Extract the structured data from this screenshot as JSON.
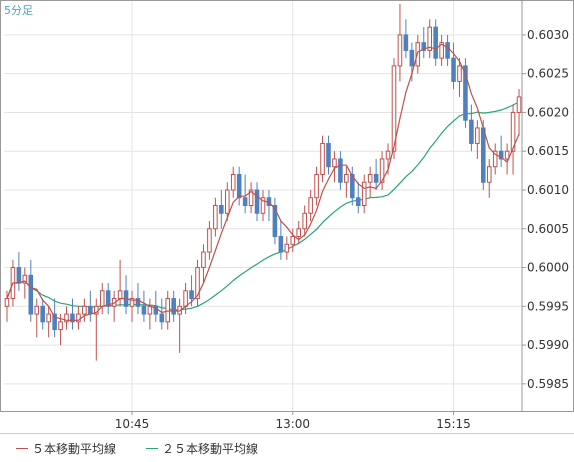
{
  "timeframe_label": "5分足",
  "colors": {
    "up": "#c0504d",
    "down": "#4f81bd",
    "ma5": "#c0504d",
    "ma25": "#2aa57a",
    "grid": "#e3e3e3",
    "axis": "#999999"
  },
  "legend": [
    {
      "label": "５本移動平均線",
      "color": "#c0504d"
    },
    {
      "label": "２５本移動平均線",
      "color": "#2aa57a"
    }
  ],
  "chart_data": {
    "type": "candlestick",
    "x_ticks": [
      "10:45",
      "13:00",
      "15:15"
    ],
    "x_tick_index": [
      21,
      48,
      75
    ],
    "y_ticks": [
      "0.6030",
      "0.6025",
      "0.6020",
      "0.6015",
      "0.6010",
      "0.6005",
      "0.6000",
      "0.5995",
      "0.5990",
      "0.5985"
    ],
    "ylim": [
      0.59815,
      0.60345
    ],
    "grid": true,
    "series": [
      {
        "name": "５本移動平均線"
      },
      {
        "name": "２５本移動平均線"
      }
    ],
    "candles": [
      [
        0.5995,
        0.5997,
        0.5993,
        0.5996
      ],
      [
        0.5996,
        0.6001,
        0.5995,
        0.6
      ],
      [
        0.6,
        0.6002,
        0.5997,
        0.5998
      ],
      [
        0.5998,
        0.6,
        0.5996,
        0.5999
      ],
      [
        0.5999,
        0.6001,
        0.5993,
        0.5994
      ],
      [
        0.5994,
        0.5996,
        0.5991,
        0.5995
      ],
      [
        0.5995,
        0.5996,
        0.5992,
        0.5993
      ],
      [
        0.5993,
        0.5995,
        0.5991,
        0.5994
      ],
      [
        0.5994,
        0.5996,
        0.5991,
        0.5992
      ],
      [
        0.5992,
        0.5994,
        0.599,
        0.5993
      ],
      [
        0.5993,
        0.5995,
        0.5992,
        0.5994
      ],
      [
        0.5994,
        0.5996,
        0.5992,
        0.5993
      ],
      [
        0.5993,
        0.5995,
        0.5992,
        0.5994
      ],
      [
        0.5994,
        0.5996,
        0.5993,
        0.5995
      ],
      [
        0.5995,
        0.5997,
        0.5993,
        0.5994
      ],
      [
        0.5994,
        0.5996,
        0.5988,
        0.5995
      ],
      [
        0.5995,
        0.5998,
        0.5994,
        0.5997
      ],
      [
        0.5997,
        0.5998,
        0.5994,
        0.5995
      ],
      [
        0.5995,
        0.5997,
        0.5993,
        0.5996
      ],
      [
        0.5996,
        0.6001,
        0.5995,
        0.5997
      ],
      [
        0.5997,
        0.5999,
        0.5994,
        0.5995
      ],
      [
        0.5995,
        0.5997,
        0.5993,
        0.5996
      ],
      [
        0.5996,
        0.5998,
        0.5994,
        0.5995
      ],
      [
        0.5995,
        0.5997,
        0.5993,
        0.5994
      ],
      [
        0.5994,
        0.5996,
        0.5992,
        0.5995
      ],
      [
        0.5995,
        0.5997,
        0.5993,
        0.5994
      ],
      [
        0.5994,
        0.5996,
        0.5992,
        0.5993
      ],
      [
        0.5993,
        0.5997,
        0.5992,
        0.5996
      ],
      [
        0.5996,
        0.5997,
        0.5993,
        0.5994
      ],
      [
        0.5994,
        0.5996,
        0.5989,
        0.5995
      ],
      [
        0.5995,
        0.5998,
        0.5994,
        0.5997
      ],
      [
        0.5997,
        0.5999,
        0.5995,
        0.5996
      ],
      [
        0.5996,
        0.6001,
        0.5995,
        0.6
      ],
      [
        0.6,
        0.6003,
        0.5998,
        0.6002
      ],
      [
        0.6002,
        0.6006,
        0.6001,
        0.6005
      ],
      [
        0.6005,
        0.6009,
        0.6004,
        0.6008
      ],
      [
        0.6008,
        0.601,
        0.6005,
        0.6007
      ],
      [
        0.6007,
        0.6011,
        0.6006,
        0.601
      ],
      [
        0.601,
        0.6013,
        0.6009,
        0.6012
      ],
      [
        0.6012,
        0.6013,
        0.6008,
        0.6009
      ],
      [
        0.6009,
        0.6012,
        0.6007,
        0.6008
      ],
      [
        0.6008,
        0.6011,
        0.6007,
        0.601
      ],
      [
        0.601,
        0.6011,
        0.6006,
        0.6007
      ],
      [
        0.6007,
        0.601,
        0.6006,
        0.6009
      ],
      [
        0.6009,
        0.601,
        0.6006,
        0.6008
      ],
      [
        0.6008,
        0.6009,
        0.6003,
        0.6004
      ],
      [
        0.6004,
        0.6006,
        0.6001,
        0.6002
      ],
      [
        0.6002,
        0.6004,
        0.6001,
        0.6003
      ],
      [
        0.6003,
        0.6005,
        0.6002,
        0.6004
      ],
      [
        0.6004,
        0.6006,
        0.6003,
        0.6005
      ],
      [
        0.6005,
        0.6008,
        0.6004,
        0.6007
      ],
      [
        0.6007,
        0.601,
        0.6006,
        0.6009
      ],
      [
        0.6009,
        0.6013,
        0.6008,
        0.6012
      ],
      [
        0.6012,
        0.6017,
        0.6011,
        0.6016
      ],
      [
        0.6016,
        0.6017,
        0.6012,
        0.6013
      ],
      [
        0.6013,
        0.6015,
        0.6011,
        0.6014
      ],
      [
        0.6014,
        0.6015,
        0.601,
        0.6011
      ],
      [
        0.6011,
        0.6013,
        0.6009,
        0.6012
      ],
      [
        0.6012,
        0.6013,
        0.6008,
        0.6009
      ],
      [
        0.6009,
        0.6011,
        0.6007,
        0.6008
      ],
      [
        0.6008,
        0.6012,
        0.6007,
        0.6011
      ],
      [
        0.6011,
        0.6013,
        0.6009,
        0.6012
      ],
      [
        0.6012,
        0.6014,
        0.601,
        0.6011
      ],
      [
        0.6011,
        0.6015,
        0.601,
        0.6014
      ],
      [
        0.6014,
        0.6016,
        0.6012,
        0.6015
      ],
      [
        0.6015,
        0.6027,
        0.6014,
        0.6026
      ],
      [
        0.6026,
        0.6034,
        0.6024,
        0.603
      ],
      [
        0.603,
        0.6032,
        0.6027,
        0.6028
      ],
      [
        0.6028,
        0.6029,
        0.6024,
        0.6026
      ],
      [
        0.6026,
        0.603,
        0.6025,
        0.6029
      ],
      [
        0.6029,
        0.6031,
        0.6027,
        0.6028
      ],
      [
        0.6028,
        0.6032,
        0.6027,
        0.6031
      ],
      [
        0.6031,
        0.6032,
        0.6026,
        0.6027
      ],
      [
        0.6027,
        0.603,
        0.6026,
        0.6029
      ],
      [
        0.6029,
        0.603,
        0.6026,
        0.6027
      ],
      [
        0.6027,
        0.6029,
        0.6023,
        0.6024
      ],
      [
        0.6024,
        0.6027,
        0.6022,
        0.6026
      ],
      [
        0.6026,
        0.6027,
        0.6018,
        0.6019
      ],
      [
        0.6019,
        0.6021,
        0.6015,
        0.6016
      ],
      [
        0.6016,
        0.6019,
        0.6014,
        0.6018
      ],
      [
        0.6018,
        0.6019,
        0.601,
        0.6011
      ],
      [
        0.6011,
        0.6014,
        0.6009,
        0.6013
      ],
      [
        0.6013,
        0.6016,
        0.6012,
        0.6015
      ],
      [
        0.6015,
        0.6017,
        0.6013,
        0.6014
      ],
      [
        0.6014,
        0.6016,
        0.6012,
        0.6015
      ],
      [
        0.6015,
        0.6021,
        0.6012,
        0.602
      ],
      [
        0.602,
        0.6023,
        0.6017,
        0.6022
      ]
    ]
  }
}
